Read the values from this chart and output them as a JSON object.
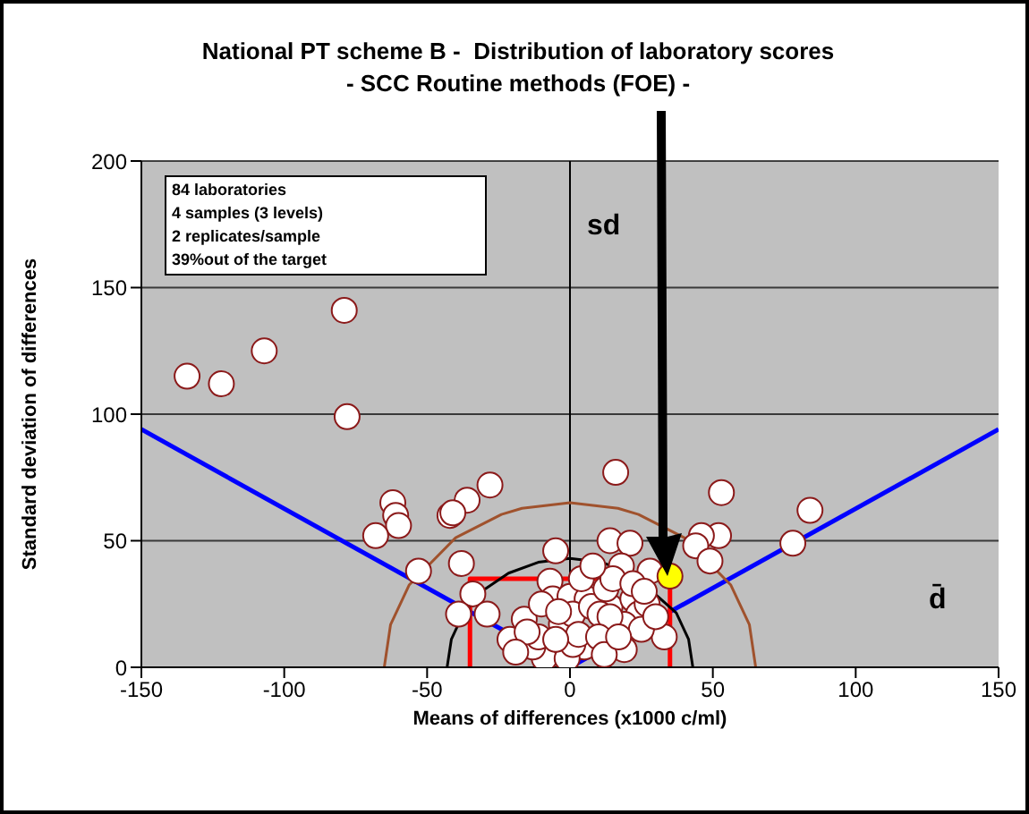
{
  "chart_data": {
    "type": "scatter",
    "title": "National PT scheme B -  Distribution of laboratory scores\n- SCC Routine methods (FOE) -",
    "xlabel": "Means of differences (x1000 c/ml)",
    "ylabel": "Standard deviation of differences",
    "xlim": [
      -150,
      150
    ],
    "xticks": [
      -150,
      -100,
      -50,
      0,
      50,
      100,
      150
    ],
    "ylim": [
      0,
      200
    ],
    "yticks": [
      0,
      50,
      100,
      150,
      200
    ],
    "grid": "y",
    "legend": false,
    "ref_lines": [
      {
        "axis": "x",
        "value": 0,
        "color": "#000000"
      }
    ],
    "annotations": [
      "84 laboratories\n4 samples (3 levels)\n2 replicates/sample\n39%out of the target",
      "sd",
      "d̄"
    ],
    "series": [
      {
        "type": "line",
        "color": "#0000ff",
        "marker": "none",
        "x": [
          -150,
          0
        ],
        "values": [
          94,
          0
        ]
      },
      {
        "type": "line",
        "color": "#0000ff",
        "marker": "none",
        "x": [
          0,
          150
        ],
        "values": [
          0,
          94
        ]
      },
      {
        "type": "line",
        "color": "#ff0000",
        "marker": "none",
        "x": [
          -35,
          -35,
          35,
          35
        ],
        "values": [
          0,
          35,
          35,
          0
        ]
      },
      {
        "type": "line",
        "color": "#000000",
        "marker": "none",
        "x": [
          -43,
          -41.5,
          -37.2,
          -30.4,
          -21.5,
          -11.1,
          0,
          11.1,
          21.5,
          37.2,
          41.5,
          43
        ],
        "values": [
          0,
          11.1,
          21.5,
          30.4,
          37.2,
          41.5,
          43,
          41.5,
          37.2,
          21.5,
          11.1,
          0
        ]
      },
      {
        "type": "line",
        "color": "#a0522d",
        "marker": "none",
        "x": [
          -65,
          -62.8,
          -56.3,
          -40,
          -24,
          -16.8,
          0,
          16.8,
          24,
          40,
          56.3,
          62.8,
          65
        ],
        "values": [
          0,
          16.8,
          32.5,
          51.2,
          60.4,
          62.8,
          65,
          62.8,
          60.4,
          51.2,
          32.5,
          16.8,
          0
        ]
      },
      {
        "color": "#ffffff",
        "marker": "circle",
        "x": [
          -134,
          -122,
          -107,
          -79,
          -78,
          -62,
          -61,
          -60,
          -68,
          -36,
          -28,
          -42,
          -41,
          16,
          -53,
          -38,
          -5,
          -34,
          -39,
          -29,
          -16,
          -21,
          -7,
          -6,
          0,
          6,
          14,
          21,
          18,
          28,
          14,
          22,
          24,
          19,
          33,
          19,
          5,
          -9,
          -1,
          -13,
          -11,
          -3,
          1,
          7.5,
          12.6,
          10.5,
          14,
          25,
          1,
          3,
          53,
          84,
          78,
          52,
          46,
          44,
          49,
          -10,
          4,
          15,
          22,
          -4,
          10,
          27,
          -15,
          12,
          -5,
          17,
          26,
          8,
          -19,
          30
        ],
        "values": [
          115,
          112,
          125,
          141,
          99,
          65,
          60,
          56,
          52,
          66,
          72,
          60,
          61,
          77,
          38,
          41,
          46,
          29,
          21,
          21,
          19,
          11,
          34,
          27,
          28,
          27,
          50,
          49,
          40,
          38,
          24,
          27,
          21,
          17,
          12,
          7,
          8,
          3.5,
          3.5,
          8,
          12,
          17,
          21,
          24,
          31,
          21,
          20,
          15,
          9,
          13,
          69,
          62,
          49,
          52,
          52,
          48,
          42,
          25,
          35,
          35,
          33,
          22,
          12,
          25,
          14,
          5,
          11,
          12,
          30,
          40,
          6,
          20
        ]
      },
      {
        "color": "#ffff00",
        "marker": "circle",
        "x": [
          35
        ],
        "values": [
          36
        ]
      }
    ]
  }
}
